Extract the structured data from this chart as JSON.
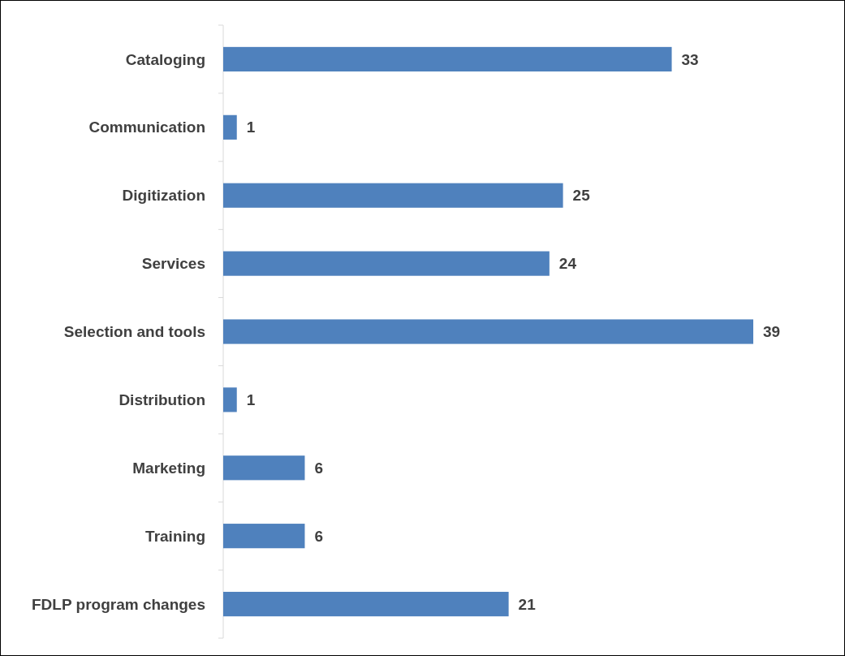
{
  "chart_data": {
    "type": "bar",
    "orientation": "horizontal",
    "categories": [
      "Cataloging",
      "Communication",
      "Digitization",
      "Services",
      "Selection and tools",
      "Distribution",
      "Marketing",
      "Training",
      "FDLP program changes"
    ],
    "values": [
      33,
      1,
      25,
      24,
      39,
      1,
      6,
      6,
      21
    ],
    "color": "#4f81bd",
    "data_labels": true
  }
}
